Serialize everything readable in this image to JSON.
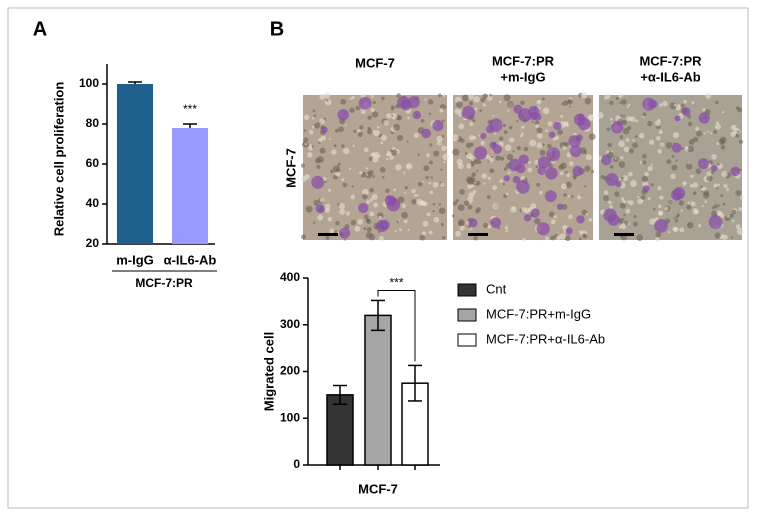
{
  "panel_labels": [
    "A",
    "B"
  ],
  "images": {
    "column_headers": [
      [
        "MCF-7"
      ],
      [
        "MCF-7:PR",
        "+m-IgG"
      ],
      [
        "MCF-7:PR",
        "+α-IL6-Ab"
      ]
    ],
    "row_label": "MCF-7"
  },
  "chart_data": [
    {
      "type": "bar",
      "y_label": "Relative cell proliferation",
      "categories": [
        "m-IgG",
        "α-IL6-Ab"
      ],
      "group_label": "MCF-7:PR",
      "values": [
        100,
        78
      ],
      "errors": [
        1,
        2
      ],
      "colors": [
        "#1f5f8b",
        "#9999ff"
      ],
      "annotation": "***",
      "ylim": [
        20,
        110
      ],
      "yticks": [
        20,
        40,
        60,
        80,
        100
      ]
    },
    {
      "type": "bar",
      "y_label": "Migrated cell",
      "x_label": "MCF-7",
      "series": [
        {
          "name": "Cnt",
          "color": "#333333",
          "values": [
            150
          ],
          "errors": [
            20
          ]
        },
        {
          "name": "MCF-7:PR+m-IgG",
          "color": "#a6a6a6",
          "values": [
            320
          ],
          "errors": [
            32
          ]
        },
        {
          "name": "MCF-7:PR+α-IL6-Ab",
          "color": "#ffffff",
          "values": [
            175
          ],
          "errors": [
            38
          ]
        }
      ],
      "annotation": "***",
      "ylim": [
        0,
        400
      ],
      "yticks": [
        0,
        100,
        200,
        300,
        400
      ]
    }
  ]
}
